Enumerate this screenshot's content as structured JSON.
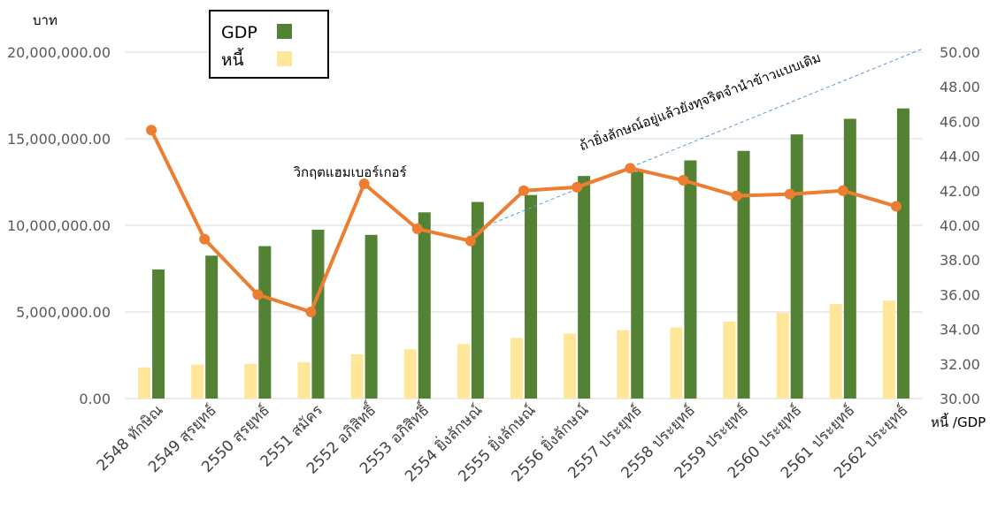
{
  "chart_data": {
    "type": "bar+line",
    "categories": [
      "2548 ทักษิณ",
      "2549 สุรยุทธ์",
      "2550 สุรยุทธ์",
      "2551 สมัคร",
      "2552 อภิสิทธิ์",
      "2553 อภิสิทธิ์",
      "2554 ยิ่งลักษณ์",
      "2555 ยิ่งลักษณ์",
      "2556 ยิ่งลักษณ์",
      "2557 ประยุทธ์",
      "2558 ประยุทธ์",
      "2559 ประยุทธ์",
      "2560 ประยุทธ์",
      "2561 ประยุทธ์",
      "2562 ประยุทธ์"
    ],
    "series": [
      {
        "name": "GDP",
        "kind": "bar",
        "axis": "left",
        "color": "#548235",
        "values": [
          7450000,
          8250000,
          8800000,
          9750000,
          9450000,
          10750000,
          11350000,
          11750000,
          12850000,
          13100000,
          13750000,
          14300000,
          15250000,
          16150000,
          16750000
        ]
      },
      {
        "name": "หนี้",
        "kind": "bar",
        "axis": "left",
        "color": "#FFE699",
        "values": [
          1800000,
          1950000,
          2000000,
          2100000,
          2550000,
          2850000,
          3150000,
          3500000,
          3750000,
          3950000,
          4100000,
          4450000,
          4950000,
          5450000,
          5650000
        ]
      },
      {
        "kind": "line",
        "axis": "right",
        "color": "#ED7D31",
        "values": [
          45.5,
          39.2,
          36.0,
          35.0,
          42.4,
          39.8,
          39.1,
          42.0,
          42.2,
          43.3,
          42.6,
          41.7,
          41.8,
          42.0,
          41.1
        ]
      }
    ],
    "left_axis": {
      "unit": "บาท",
      "ylim": [
        0,
        20000000
      ],
      "ticks": [
        "0.00",
        "5,000,000.00",
        "10,000,000.00",
        "15,000,000.00",
        "20,000,000.00"
      ]
    },
    "right_axis": {
      "unit": "หนี้ /GDP",
      "ylim": [
        30,
        50
      ],
      "ticks": [
        "30.00",
        "32.00",
        "34.00",
        "36.00",
        "38.00",
        "40.00",
        "42.00",
        "44.00",
        "46.00",
        "48.00",
        "50.00"
      ]
    },
    "gridlines": "horizontal",
    "legend": {
      "placement": "top-left",
      "entries": [
        "GDP",
        "หนี้"
      ]
    },
    "annotations": [
      {
        "text": "วิกฤตแฮมเบอร์เกอร์",
        "category_index": 4,
        "y_right": 42.8
      },
      {
        "text": "ถ้ายิ่งลักษณ์อยู่แล้วยังทุจริตจำนำข้าวแบบเดิม",
        "category_index": 9,
        "y_right": 44.3
      }
    ],
    "trend_line": {
      "style": "dashed",
      "color": "#5B9BD5",
      "from": {
        "category_index": 6,
        "y_right": 39.6
      },
      "to": {
        "category_index": 14.5,
        "y_right": 50.2
      }
    }
  }
}
